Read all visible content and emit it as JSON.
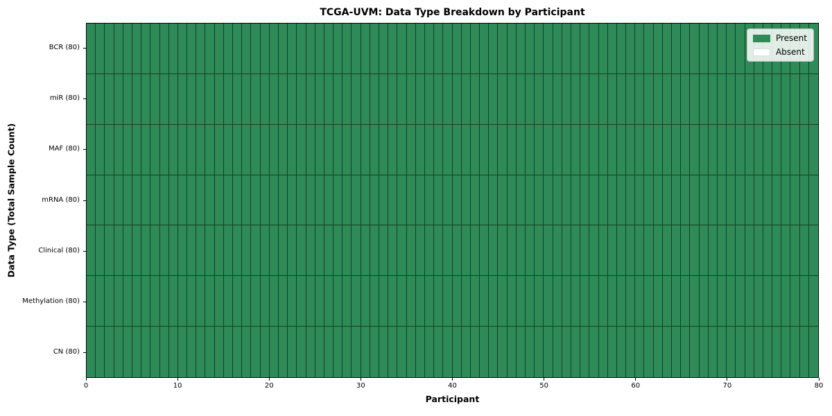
{
  "chart_data": {
    "type": "heatmap",
    "title": "TCGA-UVM: Data Type Breakdown by Participant",
    "xlabel": "Participant",
    "ylabel": "Data Type (Total Sample Count)",
    "xlim": [
      0,
      80
    ],
    "x_ticks": [
      0,
      10,
      20,
      30,
      40,
      50,
      60,
      70,
      80
    ],
    "n_participants": 80,
    "rows": [
      {
        "label": "BCR (80)",
        "data_type": "BCR",
        "total_samples": 80,
        "present_count": 80
      },
      {
        "label": "miR (80)",
        "data_type": "miR",
        "total_samples": 80,
        "present_count": 80
      },
      {
        "label": "MAF (80)",
        "data_type": "MAF",
        "total_samples": 80,
        "present_count": 80
      },
      {
        "label": "mRNA (80)",
        "data_type": "mRNA",
        "total_samples": 80,
        "present_count": 80
      },
      {
        "label": "Clinical (80)",
        "data_type": "Clinical",
        "total_samples": 80,
        "present_count": 80
      },
      {
        "label": "Methylation (80)",
        "data_type": "Methylation",
        "total_samples": 80,
        "present_count": 80
      },
      {
        "label": "CN (80)",
        "data_type": "CN",
        "total_samples": 80,
        "present_count": 80
      }
    ],
    "matrix_uniform_value": "Present",
    "legend": {
      "position": "upper right",
      "entries": [
        {
          "label": "Present",
          "color": "#2E8B57"
        },
        {
          "label": "Absent",
          "color": "#FFFFFF"
        }
      ]
    },
    "colors": {
      "present": "#2E8B57",
      "absent": "#FFFFFF",
      "cell_edge": "#1A1A1A",
      "frame": "#000000"
    },
    "grid_on": true
  }
}
